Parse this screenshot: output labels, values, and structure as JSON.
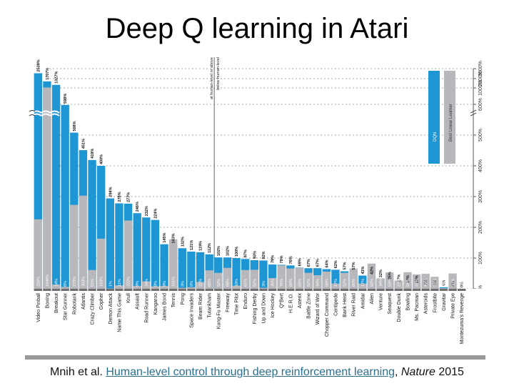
{
  "slide": {
    "title": "Deep Q learning in Atari",
    "citation": {
      "authors": "Mnih et al.",
      "link_text": "Human-level control through deep reinforcement learning",
      "journal": "Nature",
      "year": "2015"
    }
  },
  "colors": {
    "dqn": "#1f96d4",
    "linear": "#b8b8bc",
    "floor": "#6f6f6f",
    "axis": "#555555"
  },
  "chart_data": {
    "type": "bar",
    "orientation": "vertical",
    "categories": [
      "Video Pinball",
      "Boxing",
      "Breakout",
      "Star Gunner",
      "Robotank",
      "Atlantis",
      "Crazy Climber",
      "Gopher",
      "Demon Attack",
      "Name This Game",
      "Krull",
      "Assault",
      "Road Runner",
      "Kangaroo",
      "James Bond",
      "Tennis",
      "Pong",
      "Space Invaders",
      "Beam Rider",
      "Tutankham",
      "Kung-Fu Master",
      "Freeway",
      "Time Pilot",
      "Enduro",
      "Fishing Derby",
      "Up and Down",
      "Ice Hockey",
      "Q*Bert",
      "H.E.R.O.",
      "Asterix",
      "Battle Zone",
      "Wizard of Wor",
      "Chopper Command",
      "Centipede",
      "Bank Heist",
      "River Raid",
      "Amidar",
      "Alien",
      "Venture",
      "Seaquest",
      "Double Dunk",
      "Bowling",
      "Ms. Pacman",
      "Asteroids",
      "Frostbite",
      "Gravitar",
      "Private Eye",
      "Montezuma's Revenge"
    ],
    "dqn_labels": [
      "2539%",
      "1707%",
      "1327%",
      "598%",
      "508%",
      "451%",
      "419%",
      "400%",
      "294%",
      "278%",
      "277%",
      "246%",
      "232%",
      "224%",
      "145%",
      "143%",
      "132%",
      "121%",
      "119%",
      "112%",
      "102%",
      "102%",
      "100%",
      "97%",
      "93%",
      "92%",
      "79%",
      "78%",
      "76%",
      "69%",
      "67%",
      "67%",
      "64%",
      "62%",
      "57%",
      "57%",
      "43%",
      "42%",
      "32%",
      "25%",
      "17%",
      "14%",
      "13%",
      "7%",
      "6%",
      "5%",
      "2%",
      "0%"
    ],
    "dqn_values": [
      2539,
      1707,
      1327,
      598,
      508,
      451,
      419,
      400,
      294,
      278,
      277,
      246,
      232,
      224,
      145,
      143,
      132,
      121,
      119,
      112,
      102,
      102,
      100,
      97,
      93,
      92,
      79,
      78,
      76,
      69,
      67,
      67,
      64,
      62,
      57,
      57,
      43,
      42,
      32,
      25,
      17,
      14,
      13,
      7,
      6,
      5,
      2,
      0
    ],
    "linear_labels": [
      "226%",
      "1046%",
      "14%",
      "6%",
      "273%",
      "303%",
      "61%",
      "163%",
      "1%",
      "11%",
      "222%",
      "9%",
      "24%",
      "8%",
      "9%",
      "161%",
      "3%",
      "5%",
      "22%",
      "60%",
      "52%",
      "68%",
      "10%",
      "61%",
      "62%",
      "3%",
      "35%",
      "76%",
      "66%",
      "68%",
      "52%",
      "44%",
      "56%",
      "17%",
      "52%",
      "66%",
      "17%",
      "82%",
      "34%",
      "53%",
      "27%",
      "54%",
      "47%",
      "49%",
      "39%",
      "2%",
      "50%",
      "0%"
    ],
    "linear_values": [
      226,
      1046,
      14,
      6,
      273,
      303,
      61,
      163,
      1,
      11,
      222,
      9,
      24,
      8,
      9,
      161,
      3,
      5,
      22,
      60,
      52,
      68,
      10,
      61,
      62,
      3,
      35,
      76,
      66,
      68,
      52,
      44,
      56,
      17,
      52,
      66,
      17,
      82,
      34,
      53,
      27,
      54,
      47,
      49,
      39,
      2,
      50,
      0
    ],
    "value_axis": {
      "ticks": [
        "0%",
        "100%",
        "200%",
        "300%",
        "400%",
        "500%",
        "600%",
        "1000%",
        "2000%",
        "3000%"
      ],
      "broken": true
    },
    "threshold": {
      "value": 100,
      "label_above": "at human-level or above",
      "label_below": "below human-level"
    },
    "legend": {
      "position": "top-right",
      "entries": [
        "DQN",
        "Best Linear Learner"
      ]
    },
    "ylabel": "",
    "title": ""
  }
}
